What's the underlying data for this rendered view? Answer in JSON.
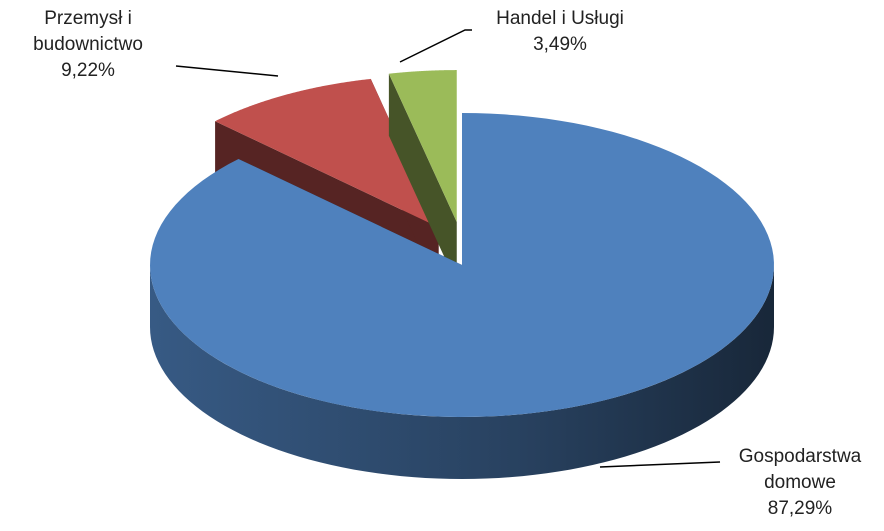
{
  "chart_data": {
    "type": "pie3d",
    "categories": [
      "Gospodarstwa domowe",
      "Przemysł i budownictwo",
      "Handel i Usługi"
    ],
    "values": [
      87.29,
      9.22,
      3.49
    ],
    "value_labels": [
      "87,29%",
      "9,22%",
      "3,49%"
    ],
    "colors": [
      "#4f81bd",
      "#c0504d",
      "#9bbb59"
    ]
  }
}
